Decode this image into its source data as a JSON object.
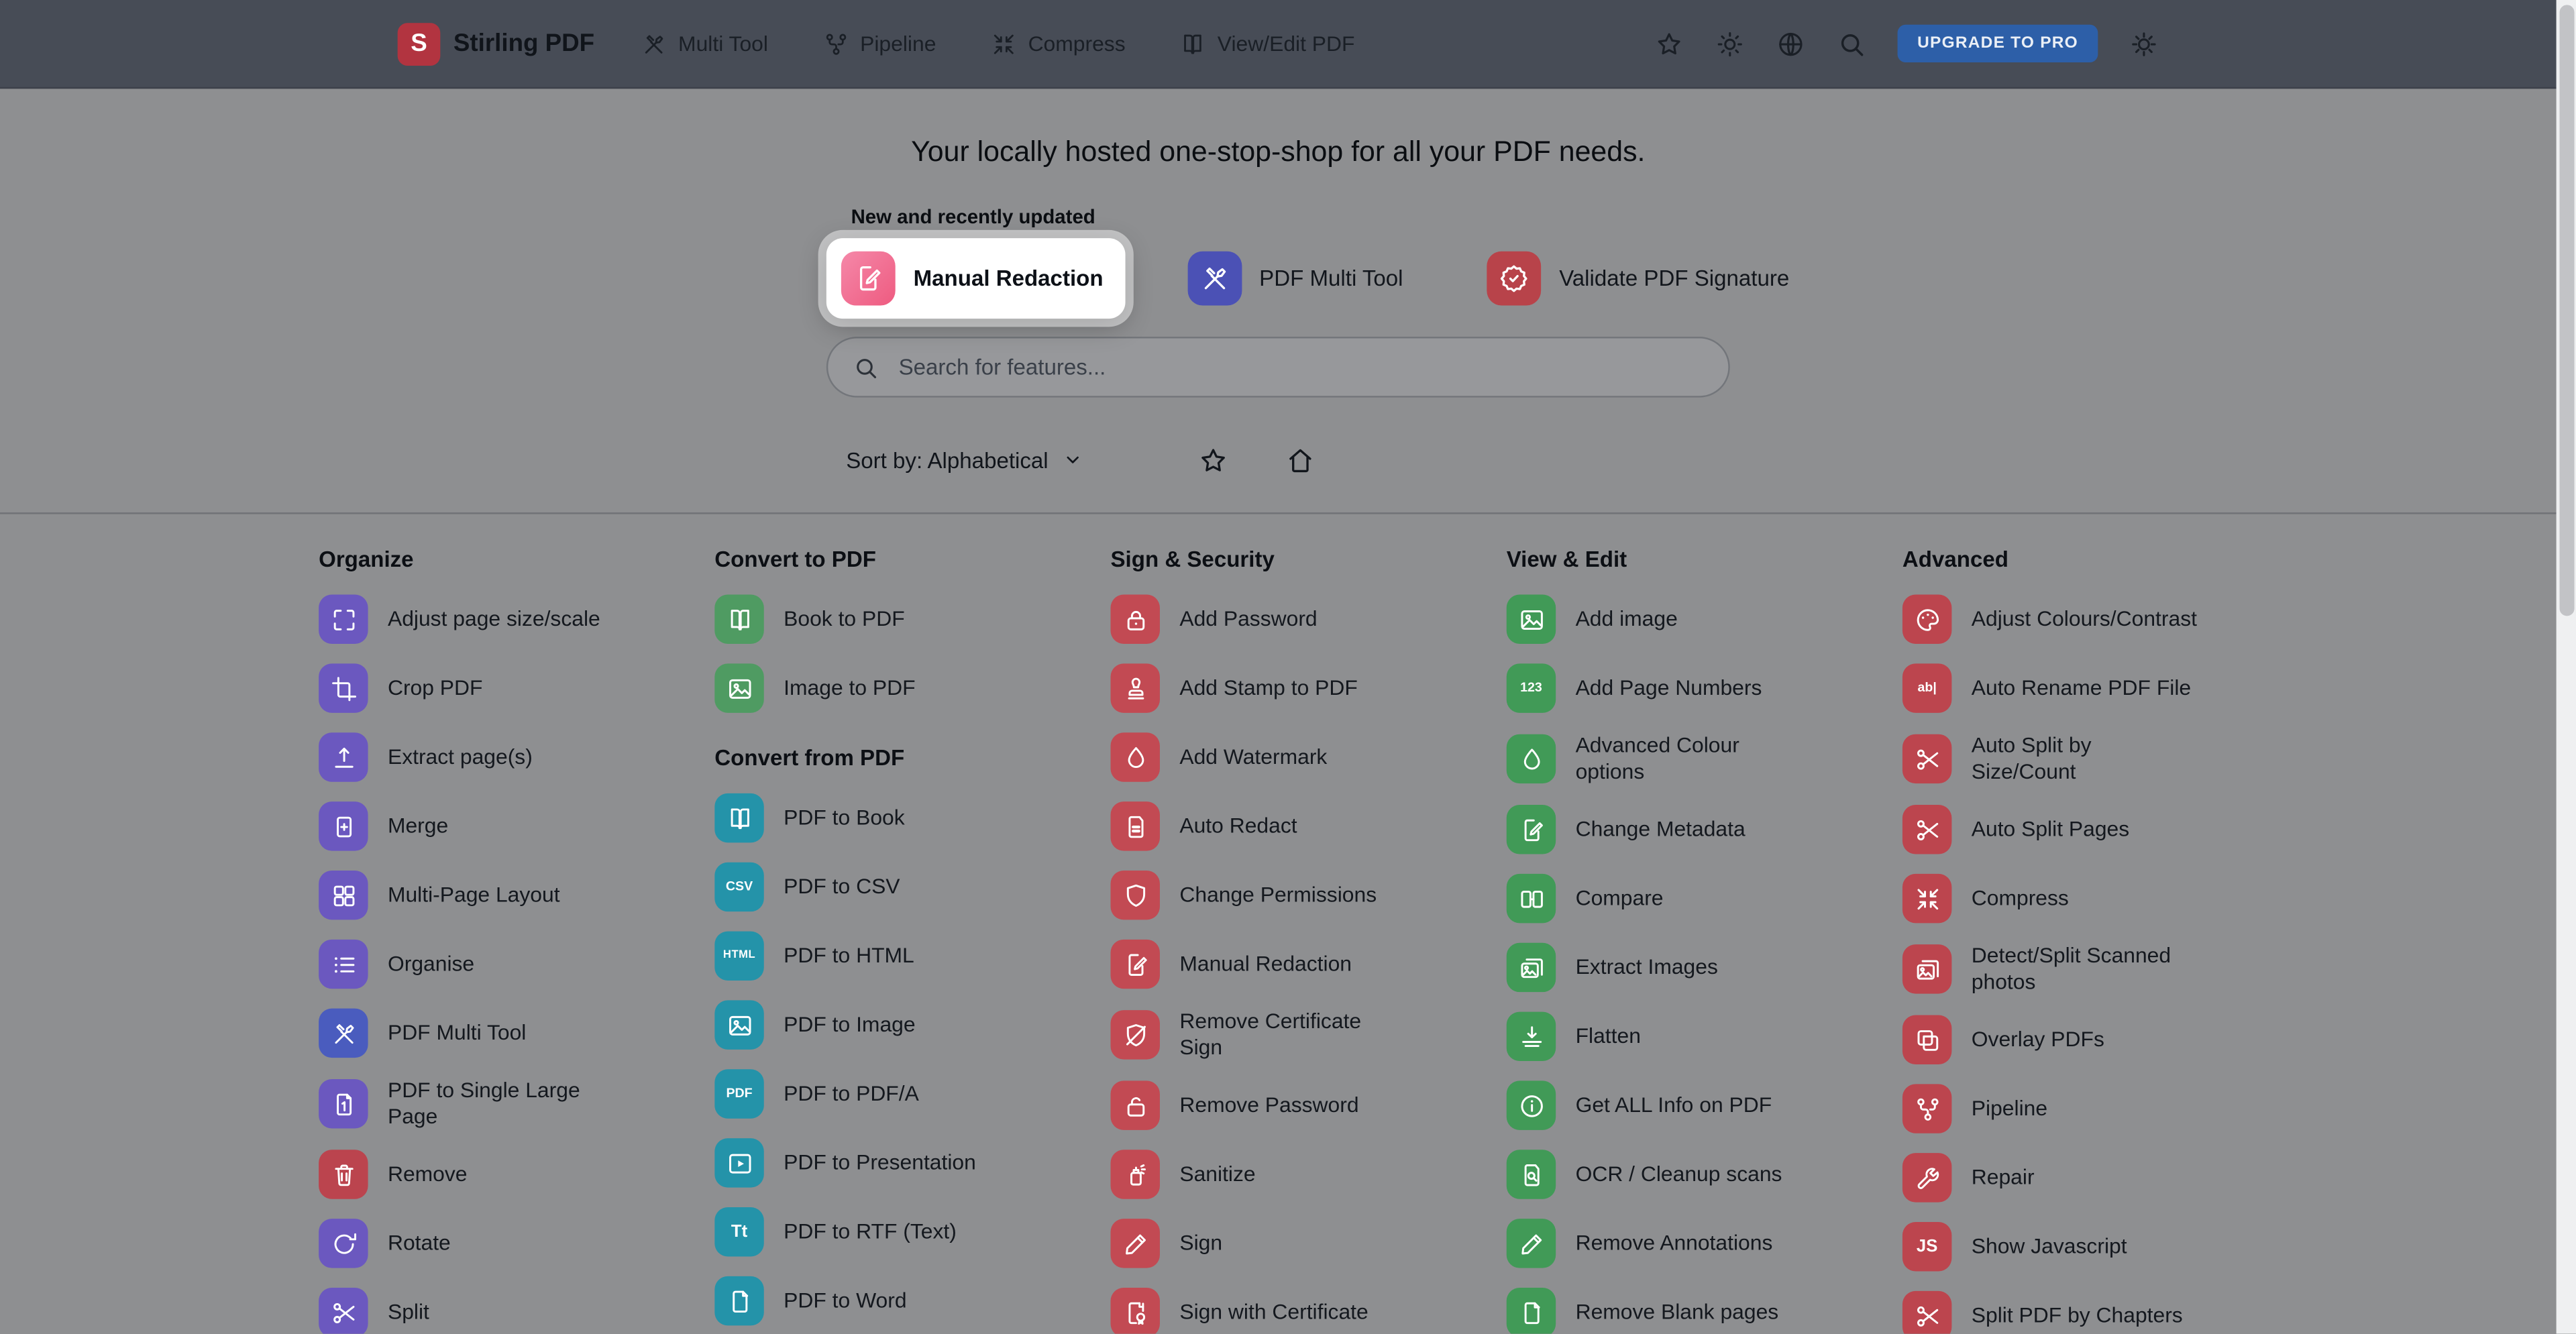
{
  "theme": {
    "navbar_bg": "#474c56",
    "page_bg": "#8e8f91",
    "logo_red": "#b23440",
    "upgrade_blue": "#2d5fa8",
    "highlight_card_bg": "#ffffff"
  },
  "navbar": {
    "brand": "Stirling PDF",
    "logo_letter": "S",
    "links": [
      {
        "label": "Multi Tool",
        "icon": "tools-icon"
      },
      {
        "label": "Pipeline",
        "icon": "pipeline-icon"
      },
      {
        "label": "Compress",
        "icon": "compress-icon"
      },
      {
        "label": "View/Edit PDF",
        "icon": "view-edit-icon"
      }
    ],
    "actions": {
      "upgrade_label": "UPGRADE TO PRO"
    }
  },
  "hero": {
    "title": "Your locally hosted one-stop-shop for all your PDF needs.",
    "new_section_label": "New and recently updated",
    "featured": [
      {
        "label": "Manual Redaction",
        "icon": "redaction-pen-icon",
        "highlighted": true,
        "color_start": "#f588a9",
        "color_end": "#ee5b80"
      },
      {
        "label": "PDF Multi Tool",
        "icon": "tools-icon",
        "highlighted": false,
        "color": "#4b51b5"
      },
      {
        "label": "Validate PDF Signature",
        "icon": "verified-badge-icon",
        "highlighted": false,
        "color": "#b8434a"
      }
    ],
    "search_placeholder": "Search for features...",
    "sort_label": "Sort by: Alphabetical"
  },
  "catalog": {
    "columns": [
      {
        "sections": [
          {
            "header": "Organize",
            "items": [
              {
                "label": "Adjust page size/scale",
                "icon": "resize-icon",
                "color": "#6b58bf"
              },
              {
                "label": "Crop PDF",
                "icon": "crop-icon",
                "color": "#6b58bf"
              },
              {
                "label": "Extract page(s)",
                "icon": "extract-icon",
                "color": "#6b58bf"
              },
              {
                "label": "Merge",
                "icon": "merge-icon",
                "color": "#6b58bf"
              },
              {
                "label": "Multi-Page Layout",
                "icon": "grid-icon",
                "color": "#6b58bf"
              },
              {
                "label": "Organise",
                "icon": "list-icon",
                "color": "#6b58bf"
              },
              {
                "label": "PDF Multi Tool",
                "icon": "tools-icon",
                "color": "#4a5cbe"
              },
              {
                "label": "PDF to Single Large\nPage",
                "icon": "single-page-icon",
                "color": "#6b58bf"
              },
              {
                "label": "Remove",
                "icon": "trash-icon",
                "color": "#bb444e"
              },
              {
                "label": "Rotate",
                "icon": "rotate-icon",
                "color": "#6b58bf"
              },
              {
                "label": "Split",
                "icon": "scissors-icon",
                "color": "#6b58bf"
              }
            ]
          }
        ]
      },
      {
        "sections": [
          {
            "header": "Convert to PDF",
            "items": [
              {
                "label": "Book to PDF",
                "icon": "book-icon",
                "color": "#4f9b62"
              },
              {
                "label": "Image to PDF",
                "icon": "image-icon",
                "color": "#4f9b62"
              }
            ]
          },
          {
            "header": "Convert from PDF",
            "items": [
              {
                "label": "PDF to Book",
                "icon": "book-icon",
                "color": "#2493a9"
              },
              {
                "label": "PDF to CSV",
                "icon": "csv-label-icon",
                "glyph": "CSV",
                "color": "#2493a9"
              },
              {
                "label": "PDF to HTML",
                "icon": "html-label-icon",
                "glyph": "HTML",
                "color": "#2493a9"
              },
              {
                "label": "PDF to Image",
                "icon": "image-icon",
                "color": "#2493a9"
              },
              {
                "label": "PDF to PDF/A",
                "icon": "pdfa-label-icon",
                "glyph": "PDF",
                "color": "#2493a9"
              },
              {
                "label": "PDF to Presentation",
                "icon": "play-icon",
                "color": "#2493a9"
              },
              {
                "label": "PDF to RTF (Text)",
                "icon": "text-label-icon",
                "glyph": "Tt",
                "color": "#2493a9"
              },
              {
                "label": "PDF to Word",
                "icon": "doc-icon",
                "color": "#2493a9"
              }
            ]
          }
        ]
      },
      {
        "sections": [
          {
            "header": "Sign & Security",
            "items": [
              {
                "label": "Add Password",
                "icon": "lock-icon",
                "color": "#c24a53"
              },
              {
                "label": "Add Stamp to PDF",
                "icon": "stamp-icon",
                "color": "#c24a53"
              },
              {
                "label": "Add Watermark",
                "icon": "droplet-icon",
                "color": "#c24a53"
              },
              {
                "label": "Auto Redact",
                "icon": "redact-bars-icon",
                "color": "#c24a53"
              },
              {
                "label": "Change Permissions",
                "icon": "shield-icon",
                "color": "#c24a53"
              },
              {
                "label": "Manual Redaction",
                "icon": "redaction-pen-icon",
                "color": "#c24a53"
              },
              {
                "label": "Remove Certificate\nSign",
                "icon": "shield-slash-icon",
                "color": "#c24a53"
              },
              {
                "label": "Remove Password",
                "icon": "lock-open-icon",
                "color": "#c24a53"
              },
              {
                "label": "Sanitize",
                "icon": "spray-icon",
                "color": "#c24a53"
              },
              {
                "label": "Sign",
                "icon": "pen-icon",
                "color": "#c24a53"
              },
              {
                "label": "Sign with Certificate",
                "icon": "certificate-icon",
                "color": "#c24a53"
              }
            ]
          }
        ]
      },
      {
        "sections": [
          {
            "header": "View & Edit",
            "items": [
              {
                "label": "Add image",
                "icon": "image-icon",
                "color": "#419a57"
              },
              {
                "label": "Add Page Numbers",
                "icon": "page-numbers-icon",
                "glyph": "123",
                "color": "#419a57"
              },
              {
                "label": "Advanced Colour\noptions",
                "icon": "droplet-icon",
                "color": "#419a57"
              },
              {
                "label": "Change Metadata",
                "icon": "doc-pen-icon",
                "color": "#419a57"
              },
              {
                "label": "Compare",
                "icon": "compare-icon",
                "color": "#419a57"
              },
              {
                "label": "Extract Images",
                "icon": "photos-icon",
                "color": "#419a57"
              },
              {
                "label": "Flatten",
                "icon": "flatten-icon",
                "color": "#419a57"
              },
              {
                "label": "Get ALL Info on PDF",
                "icon": "info-icon",
                "color": "#419a57"
              },
              {
                "label": "OCR / Cleanup scans",
                "icon": "doc-search-icon",
                "color": "#419a57"
              },
              {
                "label": "Remove Annotations",
                "icon": "pen-icon",
                "color": "#419a57"
              },
              {
                "label": "Remove Blank pages",
                "icon": "doc-icon",
                "color": "#419a57"
              }
            ]
          }
        ]
      },
      {
        "sections": [
          {
            "header": "Advanced",
            "items": [
              {
                "label": "Adjust Colours/Contrast",
                "icon": "palette-icon",
                "color": "#bc454e"
              },
              {
                "label": "Auto Rename PDF File",
                "icon": "rename-label-icon",
                "glyph": "ab|",
                "color": "#bc454e"
              },
              {
                "label": "Auto Split by\nSize/Count",
                "icon": "scissors-icon",
                "color": "#bc454e"
              },
              {
                "label": "Auto Split Pages",
                "icon": "scissors-icon",
                "color": "#bc454e"
              },
              {
                "label": "Compress",
                "icon": "compress-icon",
                "color": "#bc454e"
              },
              {
                "label": "Detect/Split Scanned\nphotos",
                "icon": "photos-icon",
                "color": "#bc454e"
              },
              {
                "label": "Overlay PDFs",
                "icon": "layers-icon",
                "color": "#bc454e"
              },
              {
                "label": "Pipeline",
                "icon": "pipeline-icon",
                "color": "#bc454e"
              },
              {
                "label": "Repair",
                "icon": "wrench-icon",
                "color": "#bc454e"
              },
              {
                "label": "Show Javascript",
                "icon": "javascript-icon",
                "glyph": "JS",
                "color": "#bc454e"
              },
              {
                "label": "Split PDF by Chapters",
                "icon": "scissors-icon",
                "color": "#bc454e"
              }
            ]
          }
        ]
      }
    ]
  }
}
